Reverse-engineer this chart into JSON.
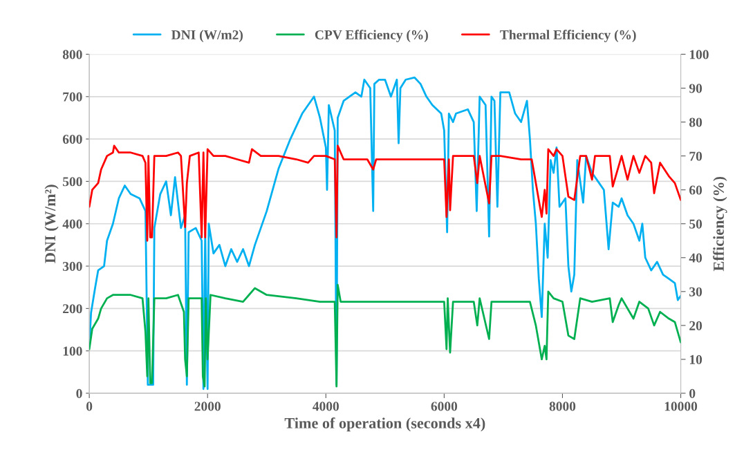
{
  "chart_data": {
    "type": "line",
    "xlabel": "Time of operation (seconds x4)",
    "ylabel": "DNI (W/m²)",
    "y2label": "Efficiency (%)",
    "xlim": [
      0,
      10000
    ],
    "xticks": [
      0,
      2000,
      4000,
      6000,
      8000,
      10000
    ],
    "ylim": [
      0,
      800
    ],
    "yticks": [
      0,
      100,
      200,
      300,
      400,
      500,
      600,
      700,
      800
    ],
    "y2lim": [
      0,
      100
    ],
    "y2ticks": [
      0,
      10,
      20,
      30,
      40,
      50,
      60,
      70,
      80,
      90,
      100
    ],
    "grid": "y",
    "legend": "top",
    "marker": "none",
    "line_style": "solid",
    "series": [
      {
        "name": "DNI (W/m2)",
        "color": "#00b0f0",
        "x": [
          0,
          30,
          100,
          150,
          250,
          300,
          400,
          500,
          600,
          700,
          850,
          950,
          990,
          1010,
          1050,
          1080,
          1100,
          1200,
          1300,
          1380,
          1450,
          1550,
          1620,
          1650,
          1680,
          1800,
          1900,
          1930,
          1960,
          2000,
          2020,
          2100,
          2200,
          2300,
          2400,
          2500,
          2600,
          2700,
          2800,
          3000,
          3200,
          3400,
          3600,
          3800,
          3900,
          4000,
          4020,
          4050,
          4150,
          4180,
          4200,
          4300,
          4500,
          4600,
          4650,
          4750,
          4800,
          4820,
          4900,
          5000,
          5100,
          5200,
          5230,
          5260,
          5350,
          5500,
          5600,
          5700,
          5800,
          5950,
          6000,
          6050,
          6080,
          6150,
          6200,
          6400,
          6500,
          6550,
          6600,
          6700,
          6760,
          6800,
          6850,
          6900,
          6950,
          7100,
          7200,
          7300,
          7400,
          7450,
          7500,
          7550,
          7600,
          7650,
          7700,
          7750,
          7800,
          7850,
          7900,
          7950,
          8050,
          8100,
          8150,
          8200,
          8250,
          8350,
          8400,
          8500,
          8600,
          8700,
          8780,
          8850,
          8950,
          9000,
          9100,
          9200,
          9300,
          9350,
          9400,
          9500,
          9600,
          9700,
          9800,
          9900,
          9950,
          10000
        ],
        "values": [
          110,
          190,
          250,
          290,
          300,
          360,
          400,
          460,
          490,
          470,
          460,
          430,
          20,
          null,
          20,
          20,
          390,
          470,
          500,
          420,
          510,
          390,
          420,
          20,
          380,
          390,
          360,
          10,
          380,
          10,
          400,
          330,
          350,
          300,
          340,
          310,
          340,
          300,
          350,
          430,
          530,
          600,
          660,
          700,
          650,
          580,
          480,
          680,
          620,
          20,
          650,
          690,
          710,
          700,
          740,
          720,
          430,
          730,
          740,
          740,
          700,
          740,
          590,
          720,
          740,
          745,
          730,
          700,
          680,
          660,
          620,
          380,
          660,
          640,
          660,
          670,
          640,
          430,
          700,
          680,
          370,
          700,
          690,
          440,
          710,
          710,
          660,
          640,
          690,
          600,
          480,
          400,
          270,
          180,
          400,
          320,
          550,
          520,
          580,
          440,
          460,
          300,
          240,
          280,
          550,
          450,
          560,
          520,
          500,
          480,
          340,
          450,
          440,
          460,
          420,
          400,
          360,
          400,
          320,
          290,
          310,
          280,
          270,
          260,
          220,
          230
        ]
      },
      {
        "name": "CPV Efficiency (%)",
        "color": "#00b050",
        "axis": "y2",
        "x": [
          0,
          50,
          150,
          200,
          300,
          400,
          500,
          700,
          900,
          950,
          980,
          1000,
          1030,
          1060,
          1100,
          1300,
          1500,
          1600,
          1620,
          1650,
          1680,
          1900,
          1920,
          1950,
          1970,
          2000,
          2050,
          2300,
          2600,
          2700,
          2800,
          3000,
          3500,
          3900,
          4000,
          4150,
          4180,
          4200,
          4250,
          4500,
          5000,
          5500,
          6000,
          6040,
          6060,
          6100,
          6150,
          6500,
          6560,
          6600,
          6760,
          6800,
          7000,
          7300,
          7450,
          7550,
          7650,
          7700,
          7730,
          7760,
          7850,
          8000,
          8100,
          8200,
          8300,
          8500,
          8800,
          8850,
          8950,
          9000,
          9200,
          9300,
          9450,
          9550,
          9650,
          9800,
          9900,
          10000
        ],
        "values": [
          13,
          19,
          22,
          25,
          28,
          29,
          29,
          29,
          28,
          18,
          5,
          28,
          3,
          3,
          28,
          28,
          29,
          24,
          10,
          5,
          28,
          28,
          5,
          2,
          28,
          10,
          29,
          28,
          27,
          29,
          31,
          29,
          28,
          27,
          27,
          27,
          2,
          32,
          27,
          27,
          27,
          27,
          27,
          13,
          28,
          12,
          27,
          27,
          20,
          28,
          16,
          27,
          27,
          27,
          27,
          20,
          10,
          14,
          10,
          30,
          28,
          27,
          17,
          16,
          28,
          27,
          28,
          21,
          26,
          28,
          22,
          27,
          25,
          20,
          24,
          22,
          21,
          15
        ]
      },
      {
        "name": "Thermal Efficiency (%)",
        "color": "#ff0000",
        "axis": "y2",
        "x": [
          0,
          50,
          150,
          200,
          300,
          400,
          420,
          500,
          700,
          900,
          950,
          980,
          1000,
          1030,
          1060,
          1100,
          1300,
          1500,
          1550,
          1620,
          1650,
          1700,
          1850,
          1900,
          1930,
          1960,
          2000,
          2100,
          2300,
          2500,
          2700,
          2750,
          2900,
          3200,
          3500,
          3700,
          3800,
          4000,
          4150,
          4180,
          4200,
          4300,
          4700,
          4800,
          4850,
          5000,
          5500,
          6000,
          6040,
          6080,
          6100,
          6150,
          6500,
          6560,
          6600,
          6760,
          6800,
          6950,
          7300,
          7480,
          7550,
          7650,
          7700,
          7730,
          7760,
          7850,
          7900,
          8000,
          8100,
          8200,
          8300,
          8400,
          8500,
          8550,
          8800,
          8850,
          8950,
          9000,
          9100,
          9200,
          9300,
          9400,
          9500,
          9550,
          9650,
          9800,
          9900,
          10000
        ],
        "values": [
          55,
          60,
          62,
          66,
          70,
          71,
          73,
          71,
          71,
          70,
          68,
          45,
          70,
          46,
          46,
          70,
          70,
          71,
          70,
          49,
          62,
          70,
          71,
          46,
          71,
          46,
          72,
          70,
          70,
          69,
          68,
          72,
          70,
          70,
          69,
          68,
          70,
          70,
          69,
          46,
          73,
          69,
          69,
          66,
          69,
          69,
          69,
          69,
          52,
          69,
          54,
          70,
          70,
          62,
          70,
          56,
          70,
          70,
          69,
          69,
          62,
          52,
          60,
          53,
          72,
          70,
          72,
          70,
          58,
          57,
          70,
          70,
          63,
          70,
          70,
          61,
          67,
          70,
          63,
          70,
          65,
          70,
          68,
          59,
          68,
          64,
          62,
          57
        ]
      }
    ]
  }
}
